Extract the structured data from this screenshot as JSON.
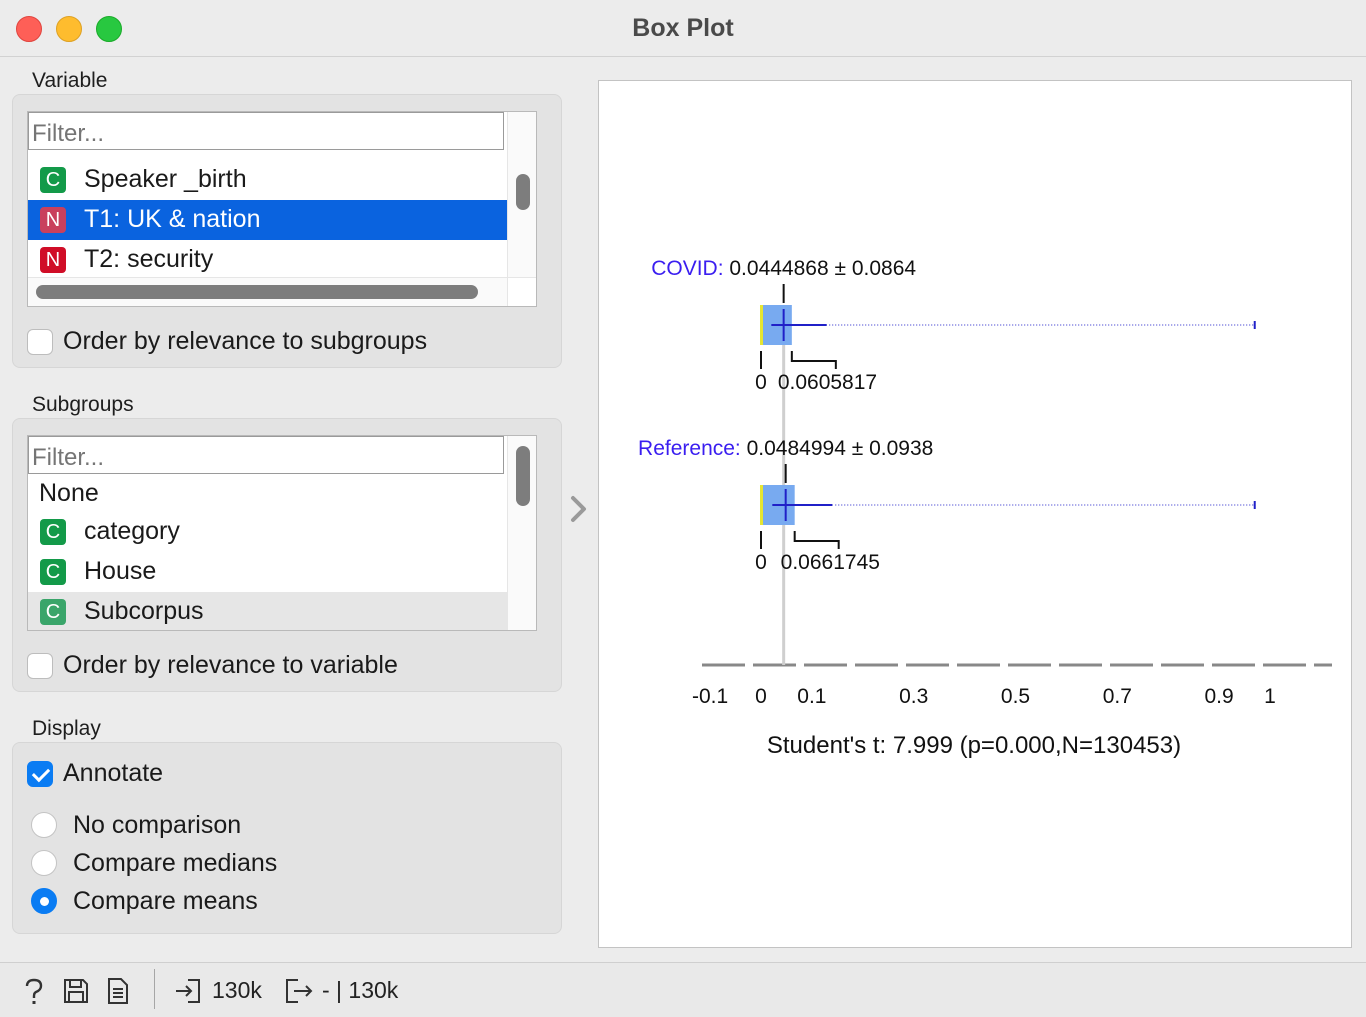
{
  "window": {
    "title": "Box Plot"
  },
  "variable": {
    "label": "Variable",
    "filter_placeholder": "Filter...",
    "items": [
      {
        "badge": "C",
        "label": "Speaker _birth",
        "state": "normal"
      },
      {
        "badge": "N",
        "label": "T1: UK & nation",
        "state": "selected"
      },
      {
        "badge": "N",
        "label": "T2: security",
        "state": "normal"
      }
    ],
    "order_checkbox": {
      "label": "Order by relevance to subgroups",
      "checked": false
    }
  },
  "subgroups": {
    "label": "Subgroups",
    "filter_placeholder": "Filter...",
    "none_label": "None",
    "items": [
      {
        "badge": "C",
        "label": "category",
        "state": "normal"
      },
      {
        "badge": "C",
        "label": "House",
        "state": "normal"
      },
      {
        "badge": "C",
        "label": "Subcorpus",
        "state": "highlighted"
      }
    ],
    "order_checkbox": {
      "label": "Order by relevance to variable",
      "checked": false
    }
  },
  "display": {
    "label": "Display",
    "annotate": {
      "label": "Annotate",
      "checked": true
    },
    "radios": [
      {
        "label": "No comparison",
        "selected": false
      },
      {
        "label": "Compare medians",
        "selected": false
      },
      {
        "label": "Compare means",
        "selected": true
      }
    ]
  },
  "chart_data": {
    "type": "box",
    "orientation": "horizontal",
    "x_ticks": [
      "-0.1",
      "0",
      "0.1",
      "0.3",
      "0.5",
      "0.7",
      "0.9",
      "1"
    ],
    "xlim": [
      -0.1,
      1.0
    ],
    "series": [
      {
        "name": "COVID",
        "mean_label": "0.0444868 ± 0.0864",
        "mean": 0.0444868,
        "sd": 0.0864,
        "median": 0,
        "median_label": "0",
        "q3": 0.0605817,
        "q3_label": "0.0605817",
        "min": 0,
        "max": 0.97
      },
      {
        "name": "Reference",
        "mean_label": "0.0484994 ± 0.0938",
        "mean": 0.0484994,
        "sd": 0.0938,
        "median": 0,
        "median_label": "0",
        "q3": 0.0661745,
        "q3_label": "0.0661745",
        "min": 0,
        "max": 0.97
      }
    ],
    "footer": "Student's t: 7.999 (p=0.000,N=130453)",
    "colors": {
      "box": "#78aaf0",
      "mean": "#2020c8",
      "label": "#3a1ef0",
      "median": "#e6e632"
    }
  },
  "statusbar": {
    "input_count": "130k",
    "output_count": "- | 130k"
  }
}
